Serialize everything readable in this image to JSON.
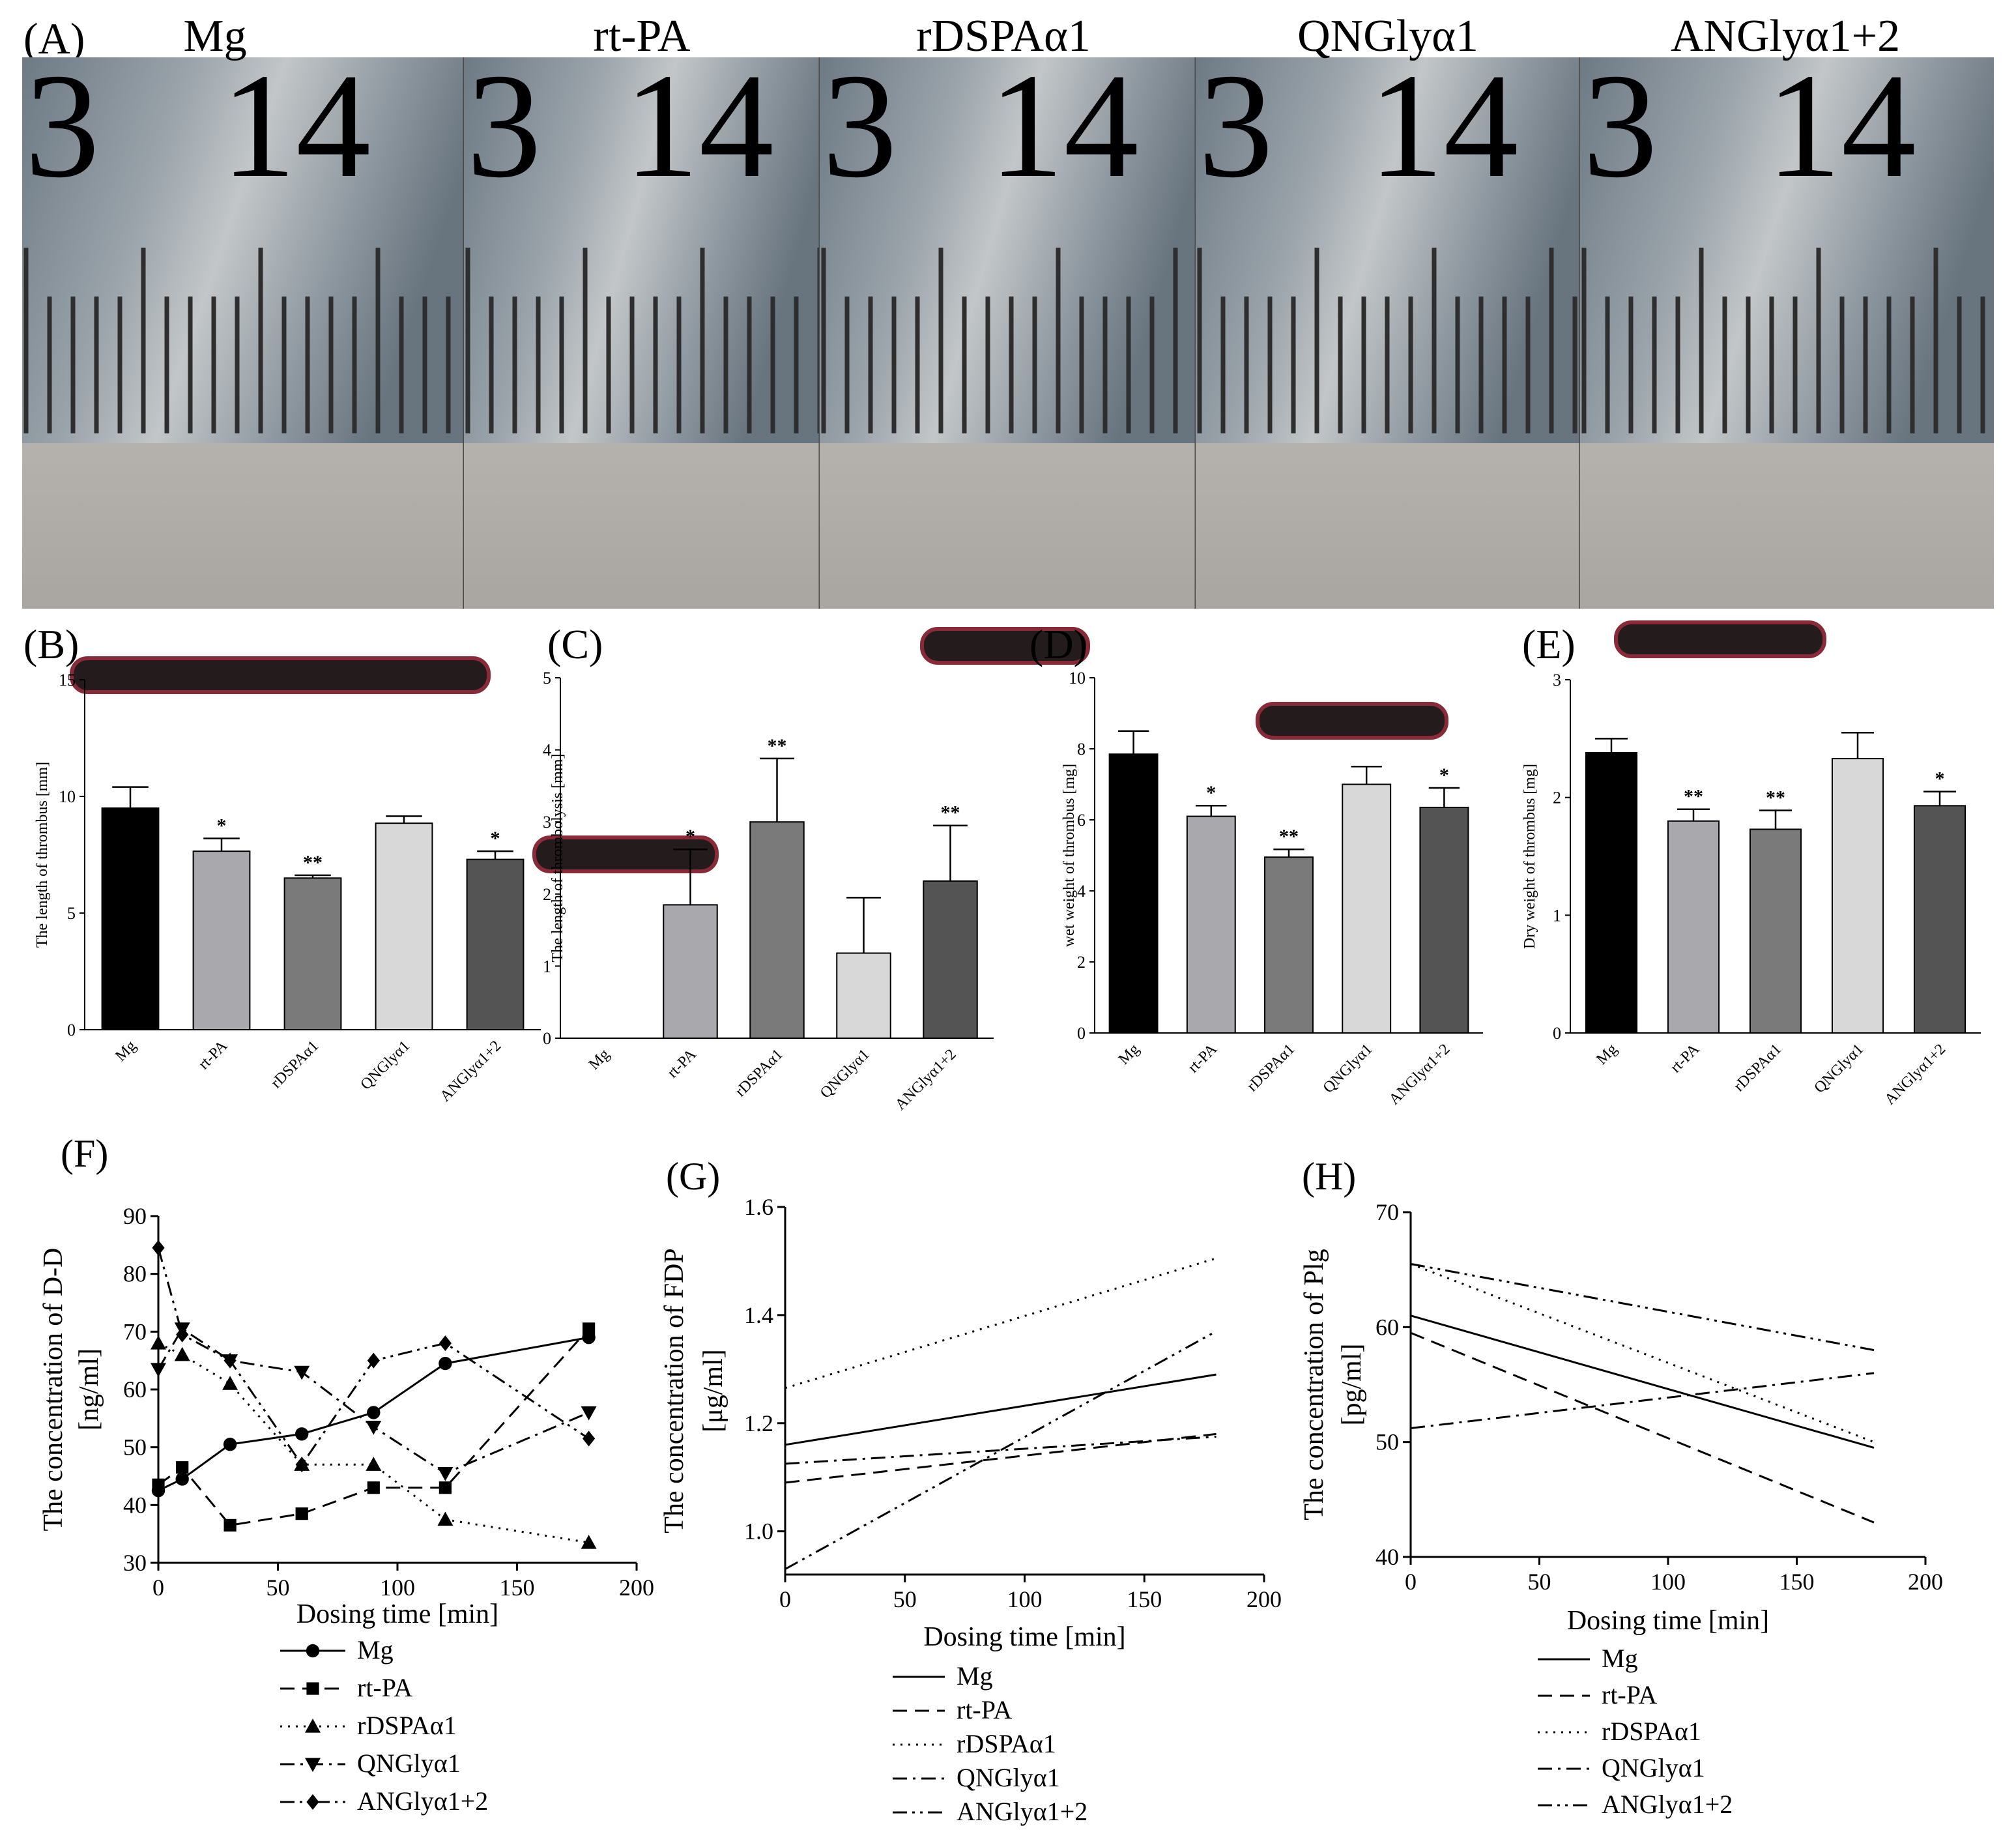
{
  "figure": {
    "photo_panel": {
      "label": "(A)",
      "groups": [
        "Mg",
        "rt-PA",
        "rDSPAα1",
        "QNGlyα1",
        "ANGlyα1+2"
      ],
      "ruler_numbers": [
        "3",
        "14"
      ]
    }
  },
  "chart_data": [
    {
      "id": "B",
      "label": "(B)",
      "type": "bar",
      "categories": [
        "Mg",
        "rt-PA",
        "rDSPAα1",
        "QNGlyα1",
        "ANGlyα1+2"
      ],
      "values": [
        9.5,
        7.65,
        6.5,
        8.85,
        7.3
      ],
      "errors": [
        0.9,
        0.55,
        0.12,
        0.3,
        0.35
      ],
      "significance": [
        "",
        "*",
        "**",
        "",
        "*"
      ],
      "colors": [
        "#000000",
        "#a8a8ad",
        "#7a7a7a",
        "#d8d8d8",
        "#545454"
      ],
      "ylabel": "The length of thrombus [mm]",
      "ylim": [
        0,
        15
      ],
      "yticks": [
        0,
        5,
        10,
        15
      ],
      "ytick_labels": [
        "0",
        "5",
        "10",
        "15"
      ]
    },
    {
      "id": "C",
      "label": "(C)",
      "type": "bar",
      "categories": [
        "Mg",
        "rt-PA",
        "rDSPAα1",
        "QNGlyα1",
        "ANGlyα1+2"
      ],
      "values": [
        0,
        1.85,
        3.0,
        1.18,
        2.18
      ],
      "errors": [
        0,
        0.77,
        0.88,
        0.77,
        0.77
      ],
      "significance": [
        "",
        "*",
        "**",
        "",
        "**"
      ],
      "colors": [
        "#000000",
        "#a8a8ad",
        "#7a7a7a",
        "#d8d8d8",
        "#545454"
      ],
      "ylabel": "The length of thrombolysis [mm]",
      "ylim": [
        0,
        5
      ],
      "yticks": [
        0,
        1,
        2,
        3,
        4,
        5
      ],
      "ytick_labels": [
        "0",
        "1",
        "2",
        "3",
        "4",
        "5"
      ]
    },
    {
      "id": "D",
      "label": "(D)",
      "type": "bar",
      "categories": [
        "Mg",
        "rt-PA",
        "rDSPAα1",
        "QNGlyα1",
        "ANGlyα1+2"
      ],
      "values": [
        7.85,
        6.1,
        4.95,
        7.0,
        6.35
      ],
      "errors": [
        0.65,
        0.3,
        0.22,
        0.5,
        0.55
      ],
      "significance": [
        "",
        "*",
        "**",
        "",
        "*"
      ],
      "colors": [
        "#000000",
        "#a8a8ad",
        "#7a7a7a",
        "#d8d8d8",
        "#545454"
      ],
      "ylabel": "wet weight of thrombus [mg]",
      "ylim": [
        0,
        10
      ],
      "yticks": [
        0,
        2,
        4,
        6,
        8,
        10
      ],
      "ytick_labels": [
        "0",
        "2",
        "4",
        "6",
        "8",
        "10"
      ]
    },
    {
      "id": "E",
      "label": "(E)",
      "type": "bar",
      "categories": [
        "Mg",
        "rt-PA",
        "rDSPAα1",
        "QNGlyα1",
        "ANGlyα1+2"
      ],
      "values": [
        2.38,
        1.8,
        1.73,
        2.33,
        1.93
      ],
      "errors": [
        0.12,
        0.1,
        0.16,
        0.22,
        0.12
      ],
      "significance": [
        "",
        "**",
        "**",
        "",
        "*"
      ],
      "colors": [
        "#000000",
        "#a8a8ad",
        "#7a7a7a",
        "#d8d8d8",
        "#545454"
      ],
      "ylabel": "Dry weight of thrombus [mg]",
      "ylim": [
        0,
        3
      ],
      "yticks": [
        0,
        1,
        2,
        3
      ],
      "ytick_labels": [
        "0",
        "1",
        "2",
        "3"
      ]
    },
    {
      "id": "F",
      "label": "(F)",
      "type": "line",
      "xlabel": "Dosing time [min]",
      "ylabel": [
        "The concentration of D-D",
        "[ng/ml]"
      ],
      "xlim": [
        0,
        200
      ],
      "ylim": [
        30,
        90
      ],
      "xticks": [
        0,
        50,
        100,
        150,
        200
      ],
      "yticks": [
        30,
        40,
        50,
        60,
        70,
        80,
        90
      ],
      "xtick_labels": [
        "0",
        "50",
        "100",
        "150",
        "200"
      ],
      "ytick_labels": [
        "30",
        "40",
        "50",
        "60",
        "70",
        "80",
        "90"
      ],
      "series": [
        {
          "name": "Mg",
          "marker": "circle",
          "dash": "none",
          "x": [
            0,
            10,
            30,
            60,
            90,
            120,
            180
          ],
          "y": [
            42.5,
            44.5,
            50.5,
            52.3,
            56,
            64.5,
            69
          ]
        },
        {
          "name": "rt-PA",
          "marker": "square",
          "dash": "long",
          "x": [
            0,
            10,
            30,
            60,
            90,
            120,
            180
          ],
          "y": [
            43.5,
            46.5,
            36.5,
            38.5,
            43,
            43,
            70.5
          ]
        },
        {
          "name": "rDSPAα1",
          "marker": "triangle-up",
          "dash": "dot",
          "x": [
            0,
            10,
            30,
            60,
            90,
            120,
            180
          ],
          "y": [
            68,
            66,
            61,
            47,
            47,
            37.5,
            33.5
          ]
        },
        {
          "name": "QNGlyα1",
          "marker": "triangle-down",
          "dash": "dashdot",
          "x": [
            0,
            10,
            30,
            60,
            90,
            120,
            180
          ],
          "y": [
            63.5,
            70.5,
            65,
            63,
            53.5,
            45.5,
            56
          ]
        },
        {
          "name": "ANGlyα1+2",
          "marker": "diamond",
          "dash": "dashdotdot",
          "x": [
            0,
            10,
            30,
            60,
            90,
            120,
            180
          ],
          "y": [
            84.5,
            69.5,
            65,
            47,
            65,
            68,
            51.5
          ]
        }
      ]
    },
    {
      "id": "G",
      "label": "(G)",
      "type": "line",
      "xlabel": "Dosing time [min]",
      "ylabel": [
        "The concentration of  FDP",
        "[μg/ml]"
      ],
      "xlim": [
        0,
        200
      ],
      "ylim": [
        0.92,
        1.6
      ],
      "xticks": [
        0,
        50,
        100,
        150,
        200
      ],
      "yticks": [
        1.0,
        1.2,
        1.4,
        1.6
      ],
      "xtick_labels": [
        "0",
        "50",
        "100",
        "150",
        "200"
      ],
      "ytick_labels": [
        "1.0",
        "1.2",
        "1.4",
        "1.6"
      ],
      "series": [
        {
          "name": "Mg",
          "marker": "none",
          "dash": "none",
          "x": [
            0,
            180
          ],
          "y": [
            1.16,
            1.29
          ]
        },
        {
          "name": "rt-PA",
          "marker": "none",
          "dash": "long",
          "x": [
            0,
            180
          ],
          "y": [
            1.09,
            1.18
          ]
        },
        {
          "name": "rDSPAα1",
          "marker": "none",
          "dash": "dot",
          "x": [
            0,
            180
          ],
          "y": [
            1.265,
            1.505
          ]
        },
        {
          "name": "QNGlyα1",
          "marker": "none",
          "dash": "dashdot",
          "x": [
            0,
            180
          ],
          "y": [
            1.125,
            1.175
          ]
        },
        {
          "name": "ANGlyα1+2",
          "marker": "none",
          "dash": "dashdotdot",
          "x": [
            0,
            180
          ],
          "y": [
            0.93,
            1.37
          ]
        }
      ]
    },
    {
      "id": "H",
      "label": "(H)",
      "type": "line",
      "xlabel": "Dosing time [min]",
      "ylabel": [
        "The concentration of Plg",
        "[pg/ml]"
      ],
      "xlim": [
        0,
        200
      ],
      "ylim": [
        40,
        70
      ],
      "xticks": [
        0,
        50,
        100,
        150,
        200
      ],
      "yticks": [
        40,
        50,
        60,
        70
      ],
      "xtick_labels": [
        "0",
        "50",
        "100",
        "150",
        "200"
      ],
      "ytick_labels": [
        "40",
        "50",
        "60",
        "70"
      ],
      "series": [
        {
          "name": "Mg",
          "marker": "none",
          "dash": "none",
          "x": [
            0,
            180
          ],
          "y": [
            61,
            49.5
          ]
        },
        {
          "name": "rt-PA",
          "marker": "none",
          "dash": "long",
          "x": [
            0,
            180
          ],
          "y": [
            59.5,
            43
          ]
        },
        {
          "name": "rDSPAα1",
          "marker": "none",
          "dash": "dot",
          "x": [
            0,
            180
          ],
          "y": [
            65.5,
            50
          ]
        },
        {
          "name": "QNGlyα1",
          "marker": "none",
          "dash": "dashdot",
          "x": [
            0,
            180
          ],
          "y": [
            51.2,
            56
          ]
        },
        {
          "name": "ANGlyα1+2",
          "marker": "none",
          "dash": "dashdotdot",
          "x": [
            0,
            180
          ],
          "y": [
            65.5,
            58
          ]
        }
      ]
    }
  ]
}
